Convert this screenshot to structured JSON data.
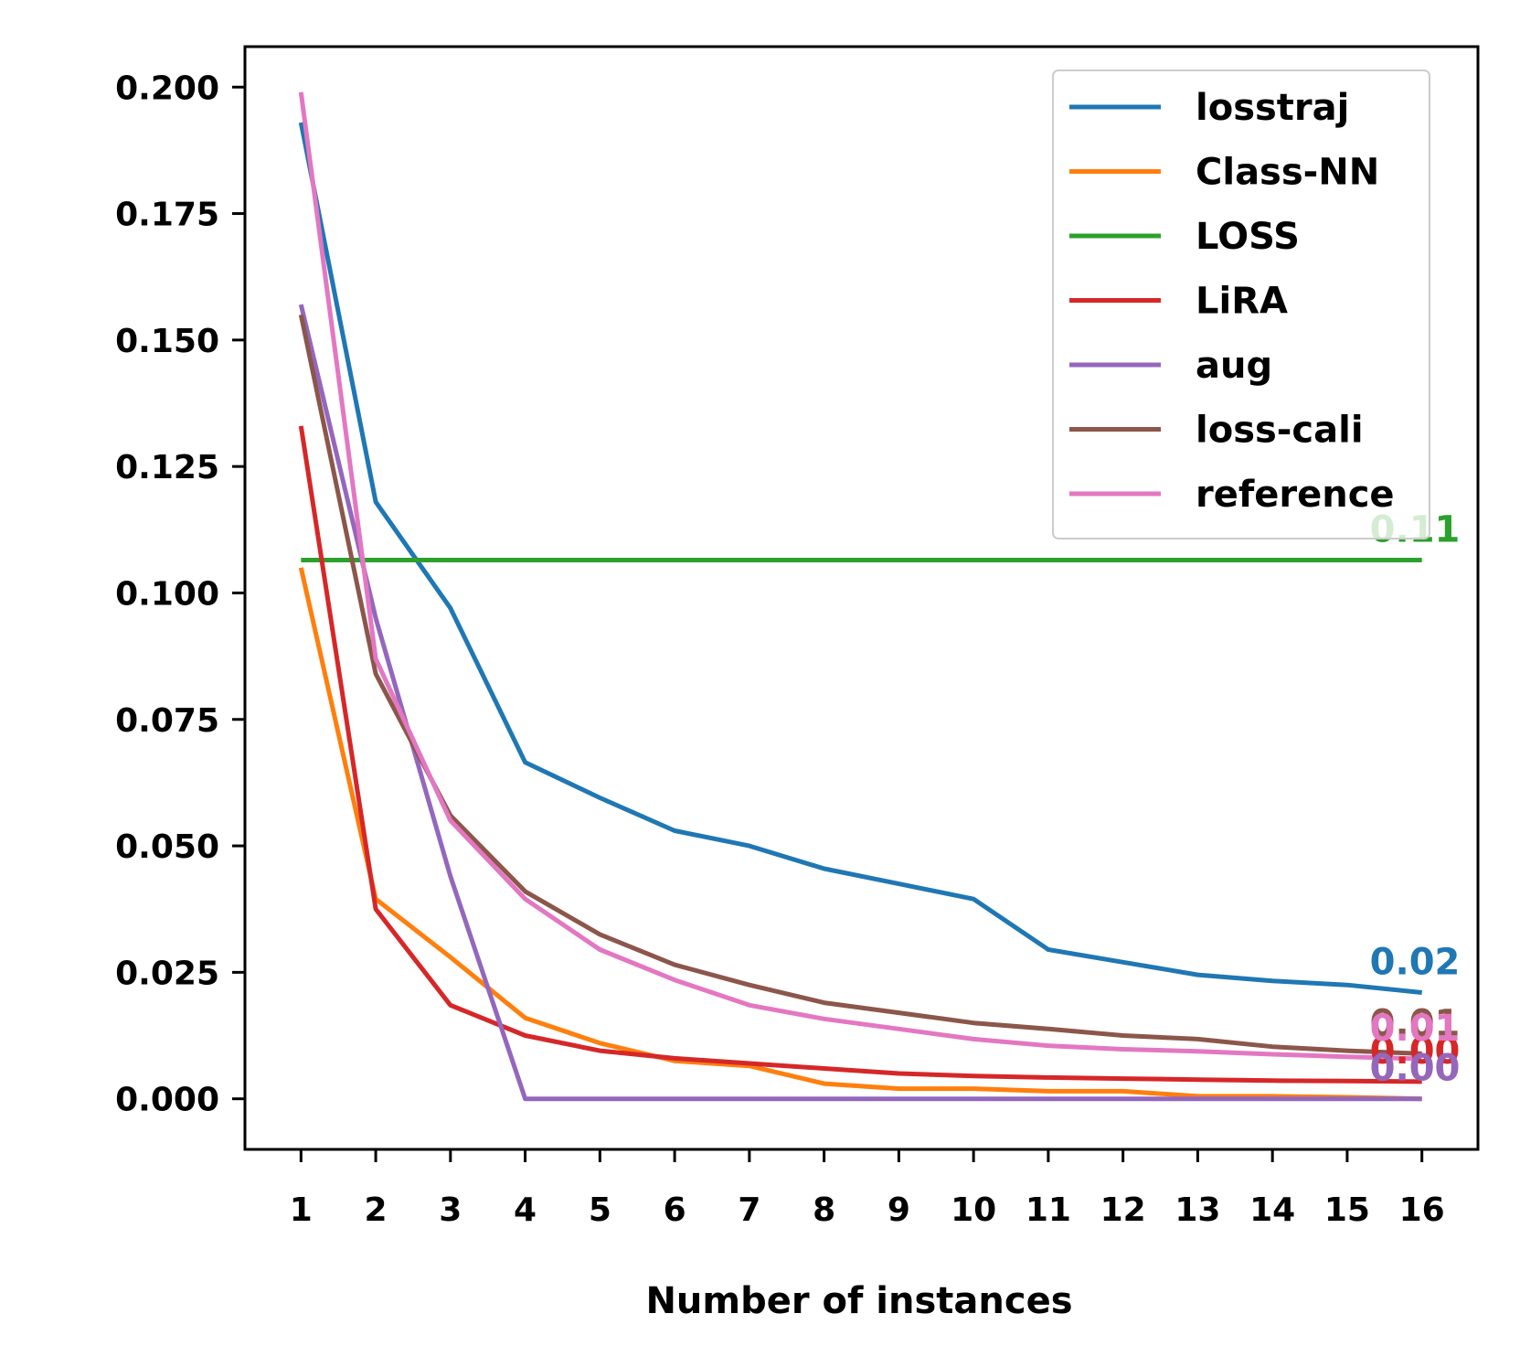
{
  "chart_data": {
    "type": "line",
    "title": "",
    "xlabel": "Number of instances",
    "ylabel": "",
    "x": [
      1,
      2,
      3,
      4,
      5,
      6,
      7,
      8,
      9,
      10,
      11,
      12,
      13,
      14,
      15,
      16
    ],
    "xtick_labels": [
      "1",
      "2",
      "3",
      "4",
      "5",
      "6",
      "7",
      "8",
      "9",
      "10",
      "11",
      "12",
      "13",
      "14",
      "15",
      "16"
    ],
    "ylim": [
      -0.01,
      0.208
    ],
    "yticks": [
      0.0,
      0.025,
      0.05,
      0.075,
      0.1,
      0.125,
      0.15,
      0.175,
      0.2
    ],
    "ytick_labels": [
      "0.000",
      "0.025",
      "0.050",
      "0.075",
      "0.100",
      "0.125",
      "0.150",
      "0.175",
      "0.200"
    ],
    "grid": false,
    "legend_position": "top-right",
    "series": [
      {
        "name": "losstraj",
        "color": "#1f77b4",
        "values": [
          0.193,
          0.118,
          0.097,
          0.0665,
          0.0595,
          0.053,
          0.05,
          0.0455,
          0.0425,
          0.0395,
          0.0295,
          0.027,
          0.0245,
          0.0233,
          0.0225,
          0.021
        ],
        "end_label": "0.02"
      },
      {
        "name": "Class-NN",
        "color": "#ff7f0e",
        "values": [
          0.105,
          0.0395,
          0.028,
          0.016,
          0.011,
          0.0075,
          0.0065,
          0.003,
          0.002,
          0.002,
          0.0015,
          0.0015,
          0.0005,
          0.0005,
          0.0003,
          0.0
        ],
        "end_label": "0.00"
      },
      {
        "name": "LOSS",
        "color": "#2ca02c",
        "values": [
          0.1065,
          0.1065,
          0.1065,
          0.1065,
          0.1065,
          0.1065,
          0.1065,
          0.1065,
          0.1065,
          0.1065,
          0.1065,
          0.1065,
          0.1065,
          0.1065,
          0.1065,
          0.1065
        ],
        "end_label": "0.11"
      },
      {
        "name": "LiRA",
        "color": "#d62728",
        "values": [
          0.133,
          0.0375,
          0.0185,
          0.0125,
          0.0095,
          0.008,
          0.007,
          0.006,
          0.005,
          0.0045,
          0.0042,
          0.004,
          0.0038,
          0.0036,
          0.0035,
          0.0034
        ],
        "end_label": "0.00"
      },
      {
        "name": "aug",
        "color": "#9467bd",
        "values": [
          0.157,
          0.095,
          0.044,
          0.0,
          0.0,
          0.0,
          0.0,
          0.0,
          0.0,
          0.0,
          0.0,
          0.0,
          0.0,
          0.0,
          0.0,
          0.0
        ],
        "end_label": "0.00"
      },
      {
        "name": "loss-cali",
        "color": "#8c564b",
        "values": [
          0.155,
          0.084,
          0.056,
          0.041,
          0.0325,
          0.0265,
          0.0225,
          0.019,
          0.017,
          0.015,
          0.0138,
          0.0125,
          0.0118,
          0.0103,
          0.0095,
          0.0089
        ],
        "end_label": "0.01"
      },
      {
        "name": "reference",
        "color": "#e377c2",
        "values": [
          0.199,
          0.087,
          0.055,
          0.0395,
          0.0295,
          0.0235,
          0.0185,
          0.0158,
          0.0138,
          0.0118,
          0.0105,
          0.0098,
          0.0094,
          0.0088,
          0.0083,
          0.0079
        ],
        "end_label": "0.01"
      }
    ]
  }
}
